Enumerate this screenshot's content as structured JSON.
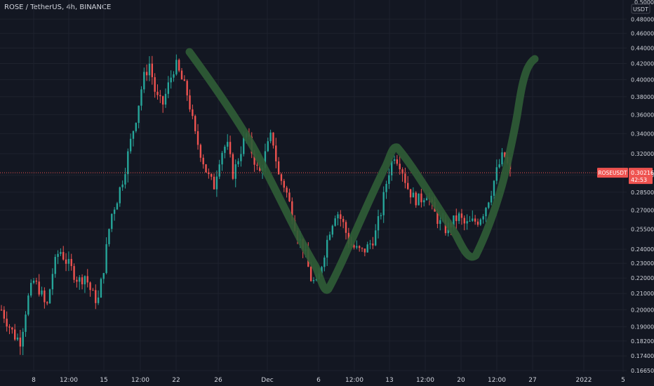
{
  "header": {
    "title": "ROSE / TetherUS, 4h, BINANCE"
  },
  "price_axis": {
    "unit": "USDT",
    "top_partial": "0.50000",
    "ticks": [
      "0.48000",
      "0.46000",
      "0.44000",
      "0.42000",
      "0.40000",
      "0.38000",
      "0.36000",
      "0.34000",
      "0.32000",
      "0.30000",
      "0.28500",
      "0.27000",
      "0.25500",
      "0.24000",
      "0.23000",
      "0.22000",
      "0.21000",
      "0.20000",
      "0.19000",
      "0.18200",
      "0.17400",
      "0.16650"
    ]
  },
  "time_axis": {
    "ticks": [
      "8",
      "12:00",
      "15",
      "12:00",
      "22",
      "26",
      "Dec",
      "6",
      "12:00",
      "13",
      "12:00",
      "20",
      "12:00",
      "27",
      "2022",
      "5"
    ]
  },
  "price_label": {
    "symbol": "ROSEUSDT",
    "price": "0.30216",
    "countdown": "42:53"
  },
  "colors": {
    "background": "#131722",
    "up": "#26a69a",
    "down": "#ef5350",
    "drawing": "#2f5c36",
    "price_line": "#ef5350",
    "grid": "#1e222d",
    "text": "#d1d4dc"
  },
  "chart_data": {
    "type": "candlestick",
    "y_scale": "log",
    "ylim": [
      0.1665,
      0.5
    ],
    "legend": "none",
    "annotation": "hand-drawn green zigzag: 0.445 → 0.212 → 0.335 → 0.233 → 0.435",
    "last_price": 0.30216,
    "note": "close values sampled approximately along the 4h price path",
    "close_samples": [
      0.2,
      0.192,
      0.185,
      0.182,
      0.205,
      0.218,
      0.212,
      0.2,
      0.225,
      0.24,
      0.232,
      0.225,
      0.218,
      0.222,
      0.21,
      0.205,
      0.23,
      0.265,
      0.28,
      0.3,
      0.33,
      0.36,
      0.4,
      0.42,
      0.38,
      0.37,
      0.395,
      0.42,
      0.4,
      0.38,
      0.34,
      0.32,
      0.3,
      0.29,
      0.32,
      0.33,
      0.3,
      0.32,
      0.34,
      0.32,
      0.3,
      0.32,
      0.34,
      0.3,
      0.29,
      0.27,
      0.25,
      0.24,
      0.22,
      0.215,
      0.235,
      0.255,
      0.27,
      0.26,
      0.245,
      0.24,
      0.238,
      0.242,
      0.25,
      0.27,
      0.3,
      0.32,
      0.31,
      0.29,
      0.28,
      0.278,
      0.285,
      0.27,
      0.26,
      0.255,
      0.26,
      0.265,
      0.258,
      0.26,
      0.262,
      0.27,
      0.285,
      0.305,
      0.32,
      0.302
    ]
  }
}
